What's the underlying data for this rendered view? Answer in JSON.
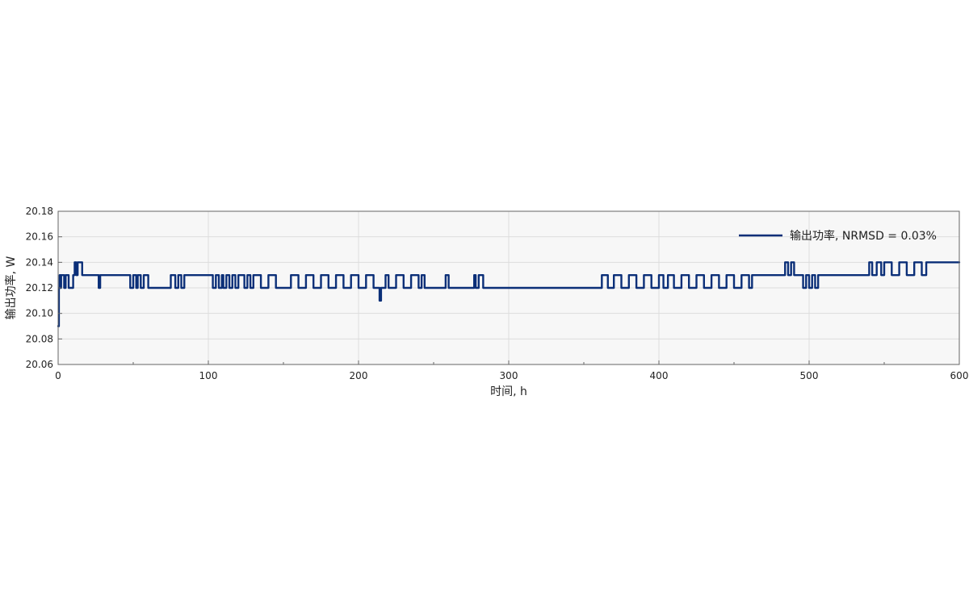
{
  "chart_data": {
    "type": "line",
    "xlabel": "时间, h",
    "ylabel": "输出功率, W",
    "xlim": [
      0,
      600
    ],
    "ylim": [
      20.06,
      20.18
    ],
    "xticks": [
      0,
      100,
      200,
      300,
      400,
      500,
      600
    ],
    "yticks": [
      20.06,
      20.08,
      20.1,
      20.12,
      20.14,
      20.16,
      20.18
    ],
    "x_tick_labels": [
      "0",
      "100",
      "200",
      "300",
      "400",
      "500",
      "600"
    ],
    "y_tick_labels": [
      "20.06",
      "20.08",
      "20.10",
      "20.12",
      "20.14",
      "20.16",
      "20.18"
    ],
    "grid": true,
    "legend_position": "top-right",
    "colors": {
      "series": "#0b2f78",
      "plot_background": "#f7f7f7",
      "grid": "#dddddd",
      "axis": "#666666"
    },
    "series": [
      {
        "name": "输出功率, NRMSD = 0.03%",
        "x": [
          0,
          0.5,
          1,
          1.5,
          2,
          3,
          4,
          5,
          6,
          7,
          10,
          11,
          12,
          13,
          14,
          16,
          17,
          18,
          25,
          27,
          28,
          48,
          50,
          52,
          53,
          55,
          57,
          60,
          75,
          78,
          80,
          82,
          84,
          103,
          105,
          107,
          109,
          110,
          112,
          114,
          116,
          118,
          120,
          124,
          126,
          128,
          130,
          135,
          140,
          145,
          150,
          155,
          160,
          165,
          170,
          175,
          180,
          185,
          190,
          195,
          200,
          205,
          210,
          214,
          215,
          218,
          220,
          225,
          230,
          235,
          240,
          242,
          244,
          255,
          258,
          260,
          262,
          270,
          277,
          278,
          280,
          283,
          285,
          290,
          300,
          330,
          360,
          362,
          366,
          370,
          375,
          380,
          385,
          390,
          395,
          398,
          400,
          403,
          406,
          410,
          415,
          420,
          425,
          430,
          435,
          440,
          445,
          450,
          455,
          460,
          462,
          470,
          480,
          484,
          486,
          488,
          490,
          492,
          494,
          496,
          498,
          500,
          502,
          504,
          506,
          510,
          520,
          535,
          540,
          542,
          545,
          548,
          550,
          555,
          560,
          565,
          570,
          575,
          578,
          580,
          590,
          600
        ],
        "y": [
          20.09,
          20.12,
          20.13,
          20.12,
          20.13,
          20.13,
          20.12,
          20.13,
          20.13,
          20.12,
          20.13,
          20.14,
          20.13,
          20.14,
          20.14,
          20.13,
          20.13,
          20.13,
          20.13,
          20.12,
          20.13,
          20.12,
          20.13,
          20.12,
          20.13,
          20.12,
          20.13,
          20.12,
          20.13,
          20.12,
          20.13,
          20.12,
          20.13,
          20.12,
          20.13,
          20.12,
          20.13,
          20.12,
          20.13,
          20.12,
          20.13,
          20.12,
          20.13,
          20.12,
          20.13,
          20.12,
          20.13,
          20.12,
          20.13,
          20.12,
          20.12,
          20.13,
          20.12,
          20.13,
          20.12,
          20.13,
          20.12,
          20.13,
          20.12,
          20.13,
          20.12,
          20.13,
          20.12,
          20.11,
          20.12,
          20.13,
          20.12,
          20.13,
          20.12,
          20.13,
          20.12,
          20.13,
          20.12,
          20.12,
          20.13,
          20.12,
          20.12,
          20.12,
          20.13,
          20.12,
          20.13,
          20.12,
          20.12,
          20.12,
          20.12,
          20.12,
          20.12,
          20.13,
          20.12,
          20.13,
          20.12,
          20.13,
          20.12,
          20.13,
          20.12,
          20.12,
          20.13,
          20.12,
          20.13,
          20.12,
          20.13,
          20.12,
          20.13,
          20.12,
          20.13,
          20.12,
          20.13,
          20.12,
          20.13,
          20.12,
          20.13,
          20.13,
          20.13,
          20.14,
          20.13,
          20.14,
          20.13,
          20.13,
          20.13,
          20.12,
          20.13,
          20.12,
          20.13,
          20.12,
          20.13,
          20.13,
          20.13,
          20.13,
          20.14,
          20.13,
          20.14,
          20.13,
          20.14,
          20.13,
          20.14,
          20.13,
          20.14,
          20.13,
          20.14,
          20.14,
          20.14,
          20.14
        ]
      }
    ]
  }
}
